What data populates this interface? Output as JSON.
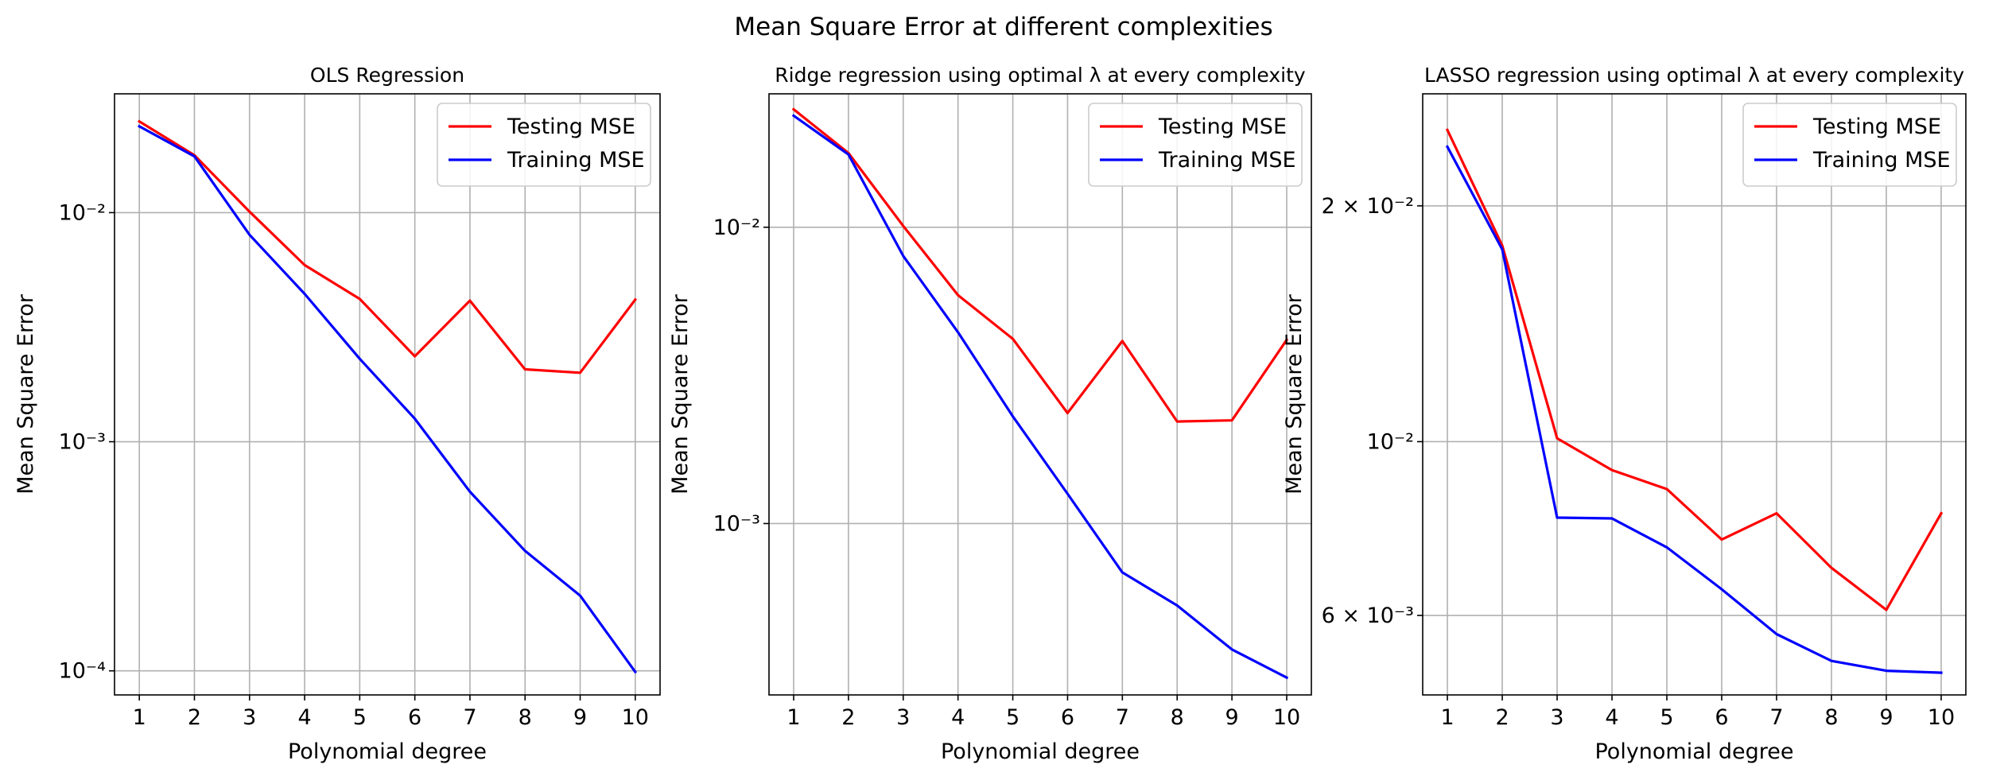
{
  "figure": {
    "title": "Mean Square Error at different complexities"
  },
  "chart_data": [
    {
      "type": "line",
      "title": "OLS Regression",
      "xlabel": "Polynomial degree",
      "ylabel": "Mean Square Error",
      "yscale": "log",
      "x": [
        1,
        2,
        3,
        4,
        5,
        6,
        7,
        8,
        9,
        10
      ],
      "xticks": [
        "1",
        "2",
        "3",
        "4",
        "5",
        "6",
        "7",
        "8",
        "9",
        "10"
      ],
      "yticks": [
        {
          "value": 0.0001,
          "label": "10⁻⁴"
        },
        {
          "value": 0.001,
          "label": "10⁻³"
        },
        {
          "value": 0.01,
          "label": "10⁻²"
        }
      ],
      "grid": true,
      "legend_position": "upper right",
      "series": [
        {
          "name": "Testing MSE",
          "color": "#ff0000",
          "values": [
            0.025,
            0.0178,
            0.0101,
            0.0059,
            0.0042,
            0.00236,
            0.00413,
            0.00207,
            0.002,
            0.00417
          ]
        },
        {
          "name": "Training MSE",
          "color": "#0000ff",
          "values": [
            0.0238,
            0.0176,
            0.008,
            0.00442,
            0.0023,
            0.00126,
            0.000605,
            0.000334,
            0.000213,
            9.9e-05
          ]
        }
      ]
    },
    {
      "type": "line",
      "title": "Ridge regression using optimal λ at every complexity",
      "xlabel": "Polynomial degree",
      "ylabel": "Mean Square Error",
      "yscale": "log",
      "x": [
        1,
        2,
        3,
        4,
        5,
        6,
        7,
        8,
        9,
        10
      ],
      "xticks": [
        "1",
        "2",
        "3",
        "4",
        "5",
        "6",
        "7",
        "8",
        "9",
        "10"
      ],
      "yticks": [
        {
          "value": 0.001,
          "label": "10⁻³"
        },
        {
          "value": 0.01,
          "label": "10⁻²"
        }
      ],
      "grid": true,
      "legend_position": "upper right",
      "series": [
        {
          "name": "Testing MSE",
          "color": "#ff0000",
          "values": [
            0.025,
            0.0178,
            0.0101,
            0.0059,
            0.0042,
            0.00236,
            0.00413,
            0.00221,
            0.00223,
            0.00417
          ]
        },
        {
          "name": "Training MSE",
          "color": "#0000ff",
          "values": [
            0.0238,
            0.0176,
            0.008,
            0.00442,
            0.0023,
            0.00126,
            0.000684,
            0.000529,
            0.000376,
            0.000302
          ]
        }
      ]
    },
    {
      "type": "line",
      "title": "LASSO regression using optimal λ at every complexity",
      "xlabel": "Polynomial degree",
      "ylabel": "Mean Square Error",
      "yscale": "log",
      "x": [
        1,
        2,
        3,
        4,
        5,
        6,
        7,
        8,
        9,
        10
      ],
      "xticks": [
        "1",
        "2",
        "3",
        "4",
        "5",
        "6",
        "7",
        "8",
        "9",
        "10"
      ],
      "yticks": [
        {
          "value": 0.006,
          "label": "6 × 10⁻³"
        },
        {
          "value": 0.01,
          "label": "10⁻²"
        },
        {
          "value": 0.02,
          "label": "2 × 10⁻²"
        }
      ],
      "grid": true,
      "legend_position": "upper right",
      "series": [
        {
          "name": "Testing MSE",
          "color": "#ff0000",
          "values": [
            0.025,
            0.0178,
            0.0101,
            0.0092,
            0.0087,
            0.0075,
            0.0081,
            0.0069,
            0.0061,
            0.0081
          ]
        },
        {
          "name": "Training MSE",
          "color": "#0000ff",
          "values": [
            0.0238,
            0.0176,
            0.008,
            0.00798,
            0.00733,
            0.00648,
            0.00568,
            0.00525,
            0.0051,
            0.00507
          ]
        }
      ]
    }
  ]
}
